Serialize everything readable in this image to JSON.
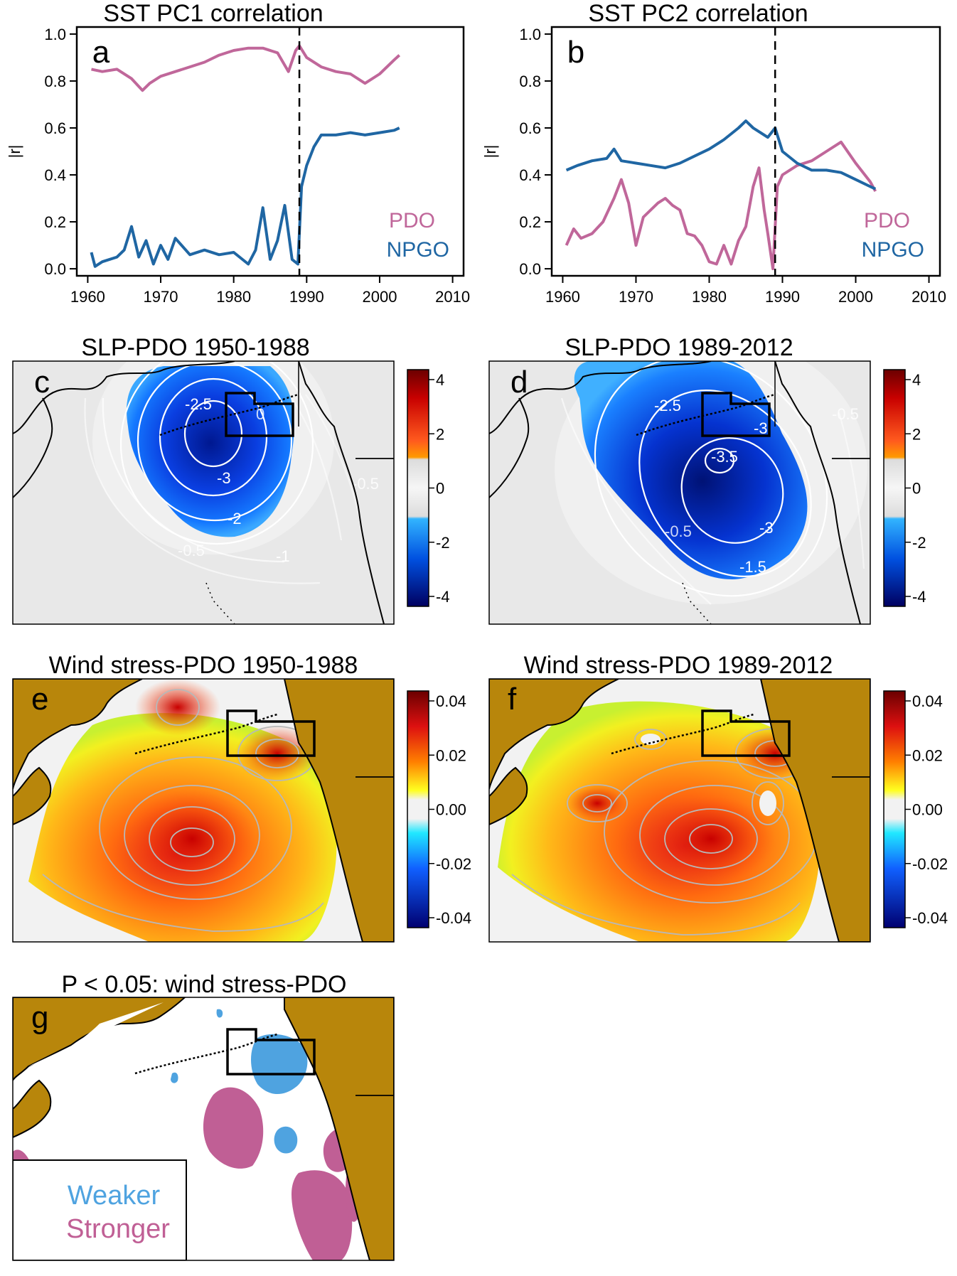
{
  "colors": {
    "pdo": "#c0679a",
    "npgo": "#1f66a3",
    "land": "#b8860b",
    "weaker": "#4fa3e0",
    "stronger": "#c05f95",
    "frame": "#000000"
  },
  "chart_data": [
    {
      "panel": "a",
      "type": "line",
      "title": "SST PC1 correlation",
      "xlabel": "",
      "ylabel": "|r|",
      "xlim": [
        1958.5,
        2011.5
      ],
      "ylim": [
        -0.03,
        1.03
      ],
      "xticks": [
        1960,
        1970,
        1980,
        1990,
        2000,
        2010
      ],
      "yticks": [
        0.0,
        0.2,
        0.4,
        0.6,
        0.8,
        1.0
      ],
      "ytick_labels": [
        "0.0",
        "0.2",
        "0.4",
        "0.6",
        "0.8",
        "1.0"
      ],
      "vline_x": 1989,
      "legend": [
        "PDO",
        "NPGO"
      ],
      "legend_position": "bottom-right",
      "series": [
        {
          "name": "PDO",
          "x": [
            1960.5,
            1962,
            1964,
            1966,
            1967.5,
            1968.5,
            1970,
            1972,
            1974,
            1976,
            1978,
            1980,
            1982,
            1984,
            1986,
            1987.5,
            1988.5,
            1989,
            1990,
            1992,
            1994,
            1996,
            1998,
            2000,
            2002,
            2002.7
          ],
          "y": [
            0.85,
            0.84,
            0.85,
            0.81,
            0.76,
            0.79,
            0.82,
            0.84,
            0.86,
            0.88,
            0.91,
            0.93,
            0.94,
            0.94,
            0.92,
            0.84,
            0.93,
            0.95,
            0.9,
            0.86,
            0.84,
            0.83,
            0.79,
            0.83,
            0.89,
            0.91
          ]
        },
        {
          "name": "NPGO",
          "x": [
            1960.5,
            1961,
            1962,
            1964,
            1965,
            1966,
            1967,
            1968,
            1969,
            1970,
            1971,
            1972,
            1974,
            1976,
            1978,
            1980,
            1982,
            1983,
            1984,
            1985,
            1986,
            1987,
            1988,
            1988.8,
            1989.3,
            1990,
            1991,
            1992,
            1994,
            1996,
            1998,
            2000,
            2002,
            2002.7
          ],
          "y": [
            0.07,
            0.01,
            0.03,
            0.05,
            0.08,
            0.18,
            0.05,
            0.12,
            0.02,
            0.1,
            0.04,
            0.13,
            0.06,
            0.08,
            0.06,
            0.07,
            0.02,
            0.08,
            0.26,
            0.04,
            0.12,
            0.27,
            0.04,
            0.02,
            0.35,
            0.44,
            0.52,
            0.57,
            0.57,
            0.58,
            0.57,
            0.58,
            0.59,
            0.6
          ]
        }
      ]
    },
    {
      "panel": "b",
      "type": "line",
      "title": "SST PC2 correlation",
      "xlabel": "",
      "ylabel": "|r|",
      "xlim": [
        1958.5,
        2011.5
      ],
      "ylim": [
        -0.03,
        1.03
      ],
      "xticks": [
        1960,
        1970,
        1980,
        1990,
        2000,
        2010
      ],
      "yticks": [
        0.0,
        0.2,
        0.4,
        0.6,
        0.8,
        1.0
      ],
      "ytick_labels": [
        "0.0",
        "0.2",
        "0.4",
        "0.6",
        "0.8",
        "1.0"
      ],
      "vline_x": 1989,
      "legend": [
        "PDO",
        "NPGO"
      ],
      "legend_position": "bottom-right",
      "series": [
        {
          "name": "PDO",
          "x": [
            1960.5,
            1961.5,
            1962.5,
            1964,
            1965.5,
            1967,
            1968,
            1969,
            1970,
            1971,
            1972,
            1973,
            1974,
            1975,
            1976,
            1977,
            1978,
            1979,
            1980,
            1981,
            1982,
            1983,
            1984,
            1985,
            1986,
            1986.8,
            1987.5,
            1988,
            1988.7,
            1989.3,
            1990,
            1992,
            1994,
            1996,
            1998,
            2000,
            2002,
            2002.7
          ],
          "y": [
            0.1,
            0.17,
            0.13,
            0.15,
            0.2,
            0.3,
            0.38,
            0.28,
            0.1,
            0.22,
            0.25,
            0.28,
            0.3,
            0.27,
            0.25,
            0.15,
            0.14,
            0.1,
            0.03,
            0.02,
            0.1,
            0.02,
            0.12,
            0.18,
            0.35,
            0.43,
            0.25,
            0.15,
            0.0,
            0.35,
            0.4,
            0.44,
            0.46,
            0.5,
            0.54,
            0.45,
            0.37,
            0.33
          ]
        },
        {
          "name": "NPGO",
          "x": [
            1960.5,
            1962,
            1964,
            1966,
            1967,
            1968,
            1970,
            1972,
            1974,
            1976,
            1978,
            1980,
            1982,
            1984,
            1985,
            1986,
            1987,
            1988,
            1989,
            1990,
            1992,
            1994,
            1996,
            1998,
            2000,
            2002,
            2002.7
          ],
          "y": [
            0.42,
            0.44,
            0.46,
            0.47,
            0.51,
            0.46,
            0.45,
            0.44,
            0.43,
            0.45,
            0.48,
            0.51,
            0.55,
            0.6,
            0.63,
            0.6,
            0.58,
            0.56,
            0.6,
            0.5,
            0.45,
            0.42,
            0.42,
            0.41,
            0.38,
            0.35,
            0.34
          ]
        }
      ]
    },
    {
      "panel": "c",
      "type": "heatmap",
      "title": "SLP-PDO 1950-1988",
      "colorbar_ticks": [
        "4",
        "2",
        "0",
        "-2",
        "-4"
      ],
      "contour_labels": [
        "-2.5",
        "-3",
        "-2",
        "-1",
        "-0.5",
        "-0.5",
        "0"
      ]
    },
    {
      "panel": "d",
      "type": "heatmap",
      "title": "SLP-PDO 1989-2012",
      "colorbar_ticks": [
        "4",
        "2",
        "0",
        "-2",
        "-4"
      ],
      "contour_labels": [
        "-2.5",
        "-3",
        "-3.5",
        "-3",
        "-1.5",
        "-0.5",
        "-0.5"
      ]
    },
    {
      "panel": "e",
      "type": "heatmap",
      "title": "Wind stress-PDO 1950-1988",
      "colorbar_ticks": [
        "0.04",
        "0.02",
        "0.00",
        "-0.02",
        "-0.04"
      ]
    },
    {
      "panel": "f",
      "type": "heatmap",
      "title": "Wind stress-PDO 1989-2012",
      "colorbar_ticks": [
        "0.04",
        "0.02",
        "0.00",
        "-0.02",
        "-0.04"
      ]
    },
    {
      "panel": "g",
      "type": "heatmap",
      "title": "P < 0.05: wind stress-PDO",
      "legend": [
        "Weaker",
        "Stronger"
      ],
      "legend_position": "bottom-left"
    }
  ]
}
